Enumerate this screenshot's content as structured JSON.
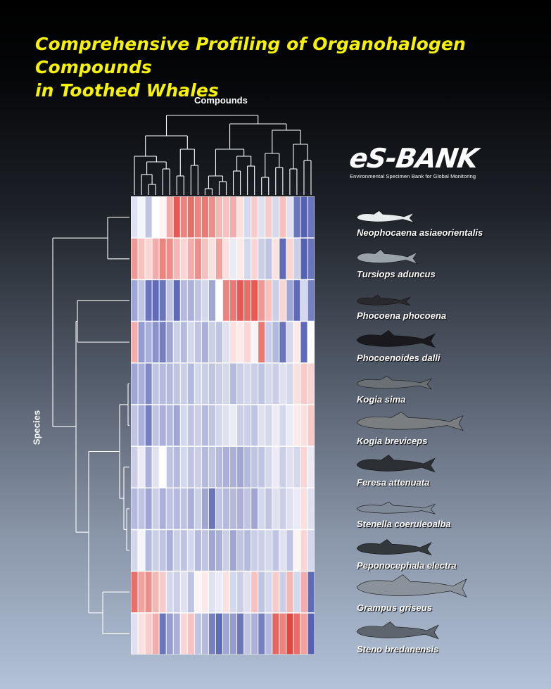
{
  "title_line1": "Comprehensive Profiling of Organohalogen Compounds",
  "title_line2": "in Toothed Whales",
  "logo": {
    "word": "eS-BANK",
    "subtitle": "Environmental Specimen Bank for Global Monitoring"
  },
  "colors": {
    "title": "#f7f300",
    "high": "#e0302a",
    "mid": "#ffffff",
    "low": "#2a3aa0"
  },
  "chart_data": {
    "type": "heatmap",
    "title": "",
    "xlabel": "Compounds",
    "ylabel": "Species",
    "rows": [
      "Neophocaena asiaeorientalis",
      "Tursiops aduncus",
      "Phocoena phocoena",
      "Phocoenoides dalli",
      "Kogia sima",
      "Kogia breviceps",
      "Feresa attenuata",
      "Stenella coeruleoalba",
      "Peponocephala electra",
      "Grampus griseus",
      "Steno bredanensis"
    ],
    "n_columns": 26,
    "value_range": [
      -2,
      2
    ],
    "color_scale": "blue-white-red",
    "values": [
      [
        -0.3,
        -0.1,
        -0.6,
        0.0,
        0.1,
        0.8,
        1.6,
        1.2,
        1.4,
        1.2,
        1.3,
        1.1,
        0.7,
        0.6,
        0.8,
        0.3,
        -0.4,
        0.5,
        -0.3,
        0.5,
        -0.4,
        0.6,
        -0.3,
        -1.4,
        -1.6,
        -1.4
      ],
      [
        1.0,
        0.6,
        0.4,
        0.8,
        1.2,
        1.1,
        0.7,
        0.4,
        0.8,
        1.1,
        0.6,
        0.3,
        0.9,
        0.3,
        -0.2,
        0.2,
        -0.4,
        0.4,
        -0.5,
        -0.6,
        0.3,
        -1.5,
        0.4,
        -0.5,
        -1.6,
        -1.4
      ],
      [
        -0.9,
        -0.6,
        -1.4,
        -1.5,
        -1.4,
        -0.6,
        -1.5,
        -0.7,
        -0.8,
        -0.6,
        -0.4,
        -0.9,
        0.0,
        1.2,
        1.3,
        1.6,
        1.4,
        1.6,
        1.0,
        0.6,
        -0.5,
        0.4,
        -0.9,
        -1.5,
        -0.4,
        -1.3
      ],
      [
        0.8,
        -1.0,
        -0.8,
        -1.1,
        -1.3,
        -0.9,
        -0.5,
        -0.7,
        -0.4,
        -0.6,
        -0.8,
        -0.5,
        -0.6,
        -0.3,
        0.3,
        0.2,
        0.4,
        0.1,
        1.3,
        -0.5,
        -0.7,
        -1.4,
        -0.4,
        0.2,
        -1.5,
        0.0
      ],
      [
        -0.9,
        -0.8,
        -1.2,
        -0.6,
        -0.7,
        -0.7,
        -0.6,
        -0.5,
        -0.7,
        -0.4,
        -0.5,
        -0.6,
        -0.5,
        -0.4,
        -0.7,
        -0.5,
        -0.4,
        -0.5,
        -0.6,
        -0.4,
        -0.5,
        -0.3,
        -0.4,
        0.3,
        0.5,
        0.4
      ],
      [
        -0.6,
        -0.8,
        -1.3,
        -0.6,
        -0.8,
        -0.7,
        -0.9,
        -0.4,
        -0.6,
        -0.5,
        -0.7,
        -0.6,
        -0.4,
        -0.3,
        -0.2,
        -0.5,
        -0.5,
        -0.6,
        -0.3,
        -0.4,
        -0.2,
        -0.4,
        -0.2,
        0.2,
        0.3,
        0.5
      ],
      [
        -0.5,
        -0.2,
        -0.8,
        -0.3,
        0.0,
        -0.6,
        -0.7,
        -0.4,
        -0.6,
        -0.5,
        -0.7,
        -0.6,
        -0.7,
        -0.8,
        -0.8,
        -0.9,
        -0.7,
        -0.6,
        -0.6,
        -0.4,
        -0.2,
        -0.5,
        -0.3,
        -0.4,
        0.4,
        -0.2
      ],
      [
        -0.7,
        -0.6,
        -0.9,
        -0.5,
        -0.8,
        -0.6,
        -0.7,
        -0.6,
        -0.8,
        -0.5,
        -0.9,
        -1.4,
        -0.6,
        -0.7,
        -0.7,
        -0.8,
        -0.6,
        -0.9,
        -0.4,
        -0.6,
        -0.3,
        -0.5,
        -0.3,
        -0.2,
        0.3,
        -0.3
      ],
      [
        -0.4,
        -0.1,
        -0.7,
        -0.5,
        -0.6,
        -0.8,
        -0.5,
        -0.6,
        -0.4,
        -0.7,
        -0.6,
        -0.9,
        -0.8,
        -0.5,
        -0.9,
        -0.6,
        -0.7,
        -0.5,
        -0.5,
        -0.4,
        -0.6,
        -0.3,
        -0.6,
        0.1,
        0.4,
        -0.4
      ],
      [
        1.4,
        0.9,
        1.1,
        0.7,
        0.5,
        -0.4,
        -0.5,
        -0.3,
        -0.6,
        0.1,
        0.2,
        -0.3,
        -0.2,
        0.3,
        -0.4,
        -0.5,
        -0.3,
        0.6,
        -0.6,
        -0.4,
        0.5,
        -0.5,
        0.7,
        -0.4,
        0.8,
        -1.5
      ],
      [
        -0.3,
        0.3,
        0.5,
        0.8,
        -1.4,
        -1.0,
        -0.8,
        0.4,
        0.6,
        -0.6,
        -0.7,
        -1.3,
        -1.5,
        -0.9,
        -1.0,
        -1.4,
        -0.6,
        -0.8,
        -1.3,
        -0.7,
        1.5,
        1.2,
        1.8,
        1.4,
        0.9,
        -1.6
      ]
    ]
  }
}
